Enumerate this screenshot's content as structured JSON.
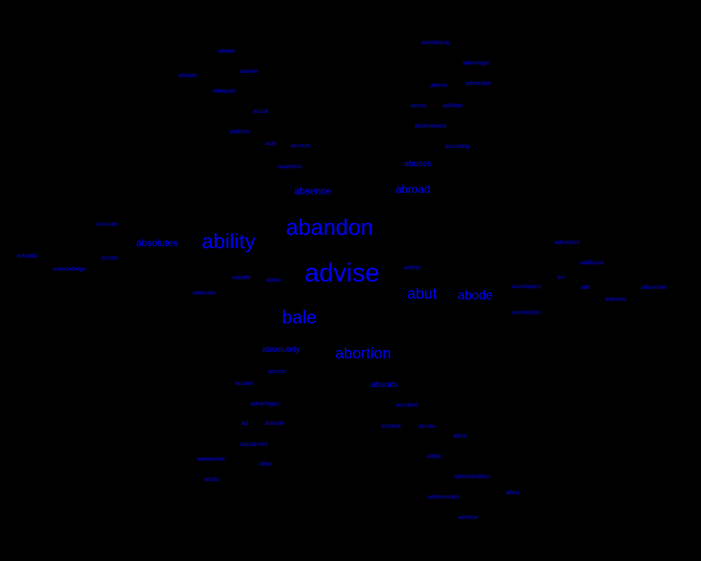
{
  "colors": {
    "background": "#000000",
    "text": "#0000ff"
  },
  "words": [
    {
      "text": "adopts",
      "weight": 1
    },
    {
      "text": "advertising",
      "weight": 1
    },
    {
      "text": "advantage",
      "weight": 1
    },
    {
      "text": "admire",
      "weight": 1
    },
    {
      "text": "advises",
      "weight": 1
    },
    {
      "text": "admission",
      "weight": 1
    },
    {
      "text": "adress",
      "weight": 1
    },
    {
      "text": "adequate",
      "weight": 1
    },
    {
      "text": "actors",
      "weight": 1
    },
    {
      "text": "addition",
      "weight": 1
    },
    {
      "text": "actual",
      "weight": 1
    },
    {
      "text": "achievement",
      "weight": 1
    },
    {
      "text": "address",
      "weight": 1
    },
    {
      "text": "acid",
      "weight": 1
    },
    {
      "text": "account",
      "weight": 1
    },
    {
      "text": "according",
      "weight": 1
    },
    {
      "text": "abuses",
      "weight": 2
    },
    {
      "text": "academic",
      "weight": 1
    },
    {
      "text": "absence",
      "weight": 3
    },
    {
      "text": "abroad",
      "weight": 4
    },
    {
      "text": "abandon",
      "weight": 9
    },
    {
      "text": "accurate",
      "weight": 1
    },
    {
      "text": "absolutes",
      "weight": 3
    },
    {
      "text": "ability",
      "weight": 8
    },
    {
      "text": "adventure",
      "weight": 1
    },
    {
      "text": "actuality",
      "weight": 1
    },
    {
      "text": "accept",
      "weight": 1
    },
    {
      "text": "additional",
      "weight": 1
    },
    {
      "text": "acknowledge",
      "weight": 1
    },
    {
      "text": "advise",
      "weight": 10
    },
    {
      "text": "activity",
      "weight": 1
    },
    {
      "text": "act",
      "weight": 1
    },
    {
      "text": "adjusts",
      "weight": 1
    },
    {
      "text": "action",
      "weight": 1
    },
    {
      "text": "accompany",
      "weight": 1
    },
    {
      "text": "add",
      "weight": 1
    },
    {
      "text": "advanced",
      "weight": 1
    },
    {
      "text": "abut",
      "weight": 6
    },
    {
      "text": "abode",
      "weight": 5
    },
    {
      "text": "advocate",
      "weight": 1
    },
    {
      "text": "admires",
      "weight": 1
    },
    {
      "text": "accomplish",
      "weight": 1
    },
    {
      "text": "bale",
      "weight": 7
    },
    {
      "text": "absolutely",
      "weight": 2
    },
    {
      "text": "abortion",
      "weight": 6
    },
    {
      "text": "access",
      "weight": 1
    },
    {
      "text": "accuse",
      "weight": 1
    },
    {
      "text": "absorb",
      "weight": 2
    },
    {
      "text": "accident",
      "weight": 1
    },
    {
      "text": "advantages",
      "weight": 1
    },
    {
      "text": "ad",
      "weight": 1
    },
    {
      "text": "activate",
      "weight": 1
    },
    {
      "text": "achieve",
      "weight": 1
    },
    {
      "text": "across",
      "weight": 1
    },
    {
      "text": "adjustment",
      "weight": 1
    },
    {
      "text": "admit",
      "weight": 1
    },
    {
      "text": "adapt",
      "weight": 1
    },
    {
      "text": "adolescent",
      "weight": 1
    },
    {
      "text": "affair",
      "weight": 1
    },
    {
      "text": "adults",
      "weight": 1
    },
    {
      "text": "administration",
      "weight": 1
    },
    {
      "text": "affect",
      "weight": 1
    },
    {
      "text": "administrator",
      "weight": 1
    },
    {
      "text": "adverse",
      "weight": 1
    }
  ]
}
